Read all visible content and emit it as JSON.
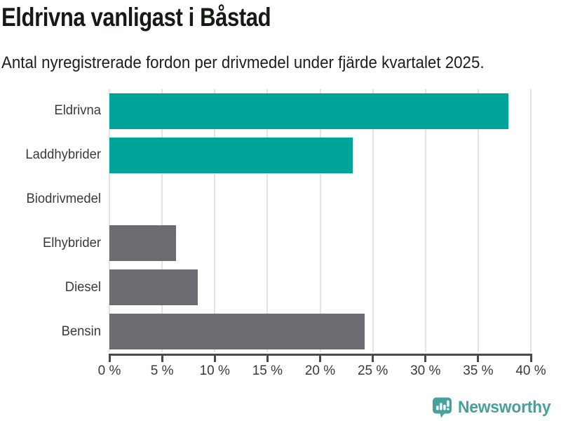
{
  "header": {
    "title": "Eldrivna vanligast i Båstad",
    "subtitle": "Antal nyregistrerade fordon per drivmedel under fjärde kvartalet 2025."
  },
  "chart_data": {
    "type": "bar",
    "orientation": "horizontal",
    "title": "Eldrivna vanligast i Båstad",
    "subtitle": "Antal nyregistrerade fordon per drivmedel under fjärde kvartalet 2025.",
    "categories": [
      "Eldrivna",
      "Laddhybrider",
      "Biodrivmedel",
      "Elhybrider",
      "Diesel",
      "Bensin"
    ],
    "values": [
      37.9,
      23.1,
      0,
      6.3,
      8.4,
      24.2
    ],
    "unit": "%",
    "bar_colors": [
      "#00a399",
      "#00a399",
      "#6b6b71",
      "#6b6b71",
      "#6b6b71",
      "#6b6b71"
    ],
    "xlabel": "",
    "ylabel": "",
    "xlim": [
      0,
      40
    ],
    "x_ticks": [
      0,
      5,
      10,
      15,
      20,
      25,
      30,
      35,
      40
    ],
    "x_tick_labels": [
      "0 %",
      "5 %",
      "10 %",
      "15 %",
      "20 %",
      "25 %",
      "30 %",
      "35 %",
      "40 %"
    ],
    "grid": "vertical-only",
    "legend": "none"
  },
  "footer": {
    "brand": "Newsworthy"
  },
  "colors": {
    "accent_teal": "#00a399",
    "bar_gray": "#6b6b71",
    "grid": "#e3e3e3",
    "axis": "#4b4b4b",
    "title_text": "#161a14",
    "label_text": "#3a3a3a",
    "logo_teal": "#45a19e"
  },
  "icons": {
    "logo": "newsworthy-speech-bubble-bar-chart-icon"
  }
}
